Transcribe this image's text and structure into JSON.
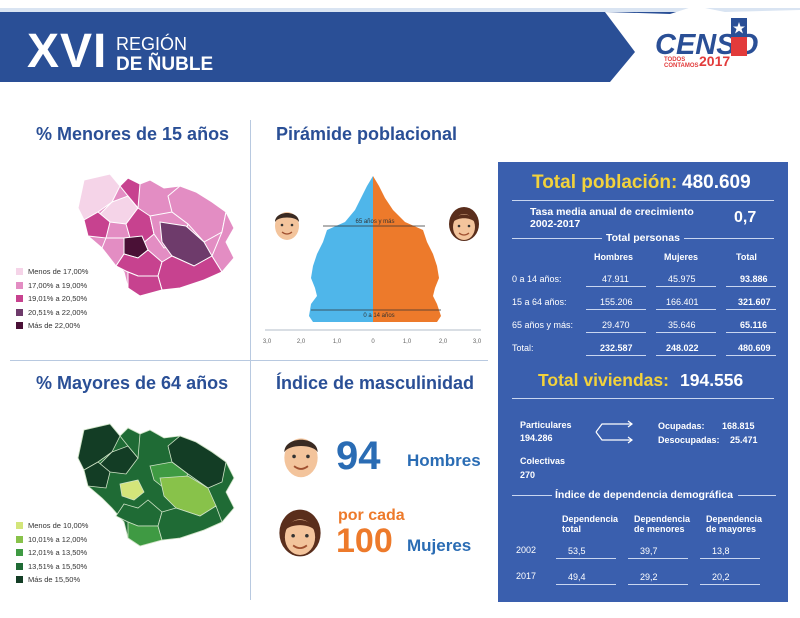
{
  "header": {
    "region_num": "XVI",
    "region_word": "REGIÓN",
    "region_name": "DE ÑUBLE",
    "brand": "CENSO",
    "tagline": "TODOS CONTAMOS",
    "year": "2017"
  },
  "menores": {
    "title": "% Menores de 15 años",
    "legend": [
      {
        "label": "Menos de 17,00%",
        "color": "#f5d4e8"
      },
      {
        "label": "17,00% a 19,00%",
        "color": "#e38dc3"
      },
      {
        "label": "19,01% a 20,50%",
        "color": "#c7428f"
      },
      {
        "label": "20,51% a 22,00%",
        "color": "#6e3b6b"
      },
      {
        "label": "Más de 22,00%",
        "color": "#4a1036"
      }
    ]
  },
  "mayores": {
    "title": "% Mayores de 64 años",
    "legend": [
      {
        "label": "Menos de 10,00%",
        "color": "#d3e57a"
      },
      {
        "label": "10,01% a 12,00%",
        "color": "#88c24a"
      },
      {
        "label": "12,01% a 13,50%",
        "color": "#3f9a43"
      },
      {
        "label": "13,51% a 15,50%",
        "color": "#1f6b35"
      },
      {
        "label": "Más de 15,50%",
        "color": "#133d25"
      }
    ]
  },
  "piramide": {
    "title": "Pirámide poblacional",
    "label_65": "65 años y más",
    "label_14": "0 a 14 años",
    "x_ticks": [
      "3,0",
      "2,0",
      "1,0",
      "0",
      "1,0",
      "2,0",
      "3,0"
    ],
    "colors": {
      "hombres": "#4fb6ea",
      "mujeres": "#ed7a2b"
    }
  },
  "masculinidad": {
    "title": "Índice de masculinidad",
    "value": "94",
    "men_label": "Hombres",
    "per_label": "por cada",
    "base": "100",
    "women_label": "Mujeres"
  },
  "panel": {
    "total_pop_label": "Total población:",
    "total_pop_value": "480.609",
    "tasa_label": "Tasa media anual de crecimiento",
    "tasa_period": "2002-2017",
    "tasa_value": "0,7",
    "personas_title": "Total personas",
    "personas_headers": [
      "Hombres",
      "Mujeres",
      "Total"
    ],
    "personas_rows": [
      {
        "label": "0 a 14 años:",
        "values": [
          "47.911",
          "45.975",
          "93.886"
        ]
      },
      {
        "label": "15 a 64 años:",
        "values": [
          "155.206",
          "166.401",
          "321.607"
        ]
      },
      {
        "label": "65 años y más:",
        "values": [
          "29.470",
          "35.646",
          "65.116"
        ]
      },
      {
        "label": "Total:",
        "values": [
          "232.587",
          "248.022",
          "480.609"
        ]
      }
    ],
    "viviendas_label": "Total viviendas:",
    "viviendas_value": "194.556",
    "particulares_label": "Particulares",
    "particulares_value": "194.286",
    "ocupadas_label": "Ocupadas:",
    "ocupadas_value": "168.815",
    "desocupadas_label": "Desocupadas:",
    "desocupadas_value": "25.471",
    "colectivas_label": "Colectivas",
    "colectivas_value": "270",
    "dependencia_title": "Índice de dependencia demográfica",
    "dep_headers": [
      {
        "l1": "Dependencia",
        "l2": "total"
      },
      {
        "l1": "Dependencia",
        "l2": "de menores"
      },
      {
        "l1": "Dependencia",
        "l2": "de mayores"
      }
    ],
    "dep_rows": [
      {
        "year": "2002",
        "values": [
          "53,5",
          "39,7",
          "13,8"
        ]
      },
      {
        "year": "2017",
        "values": [
          "49,4",
          "29,2",
          "20,2"
        ]
      }
    ]
  }
}
